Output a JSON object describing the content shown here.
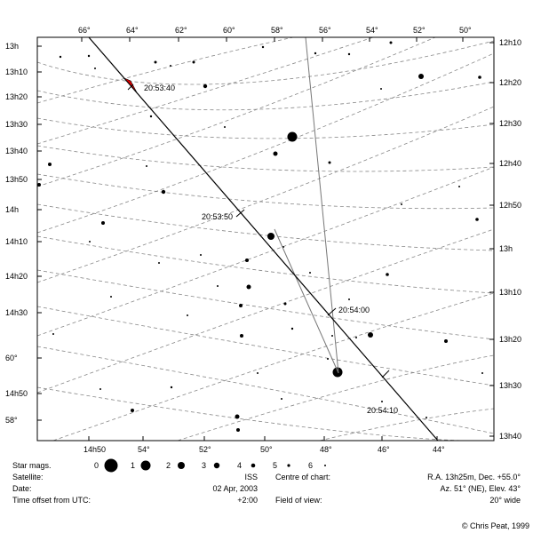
{
  "chart": {
    "top_labels": [
      "66°",
      "64°",
      "62°",
      "60°",
      "58°",
      "56°",
      "54°",
      "52°",
      "50°"
    ],
    "bottom_labels": [
      "14h50",
      "54°",
      "52°",
      "50°",
      "48°",
      "46°",
      "44°"
    ],
    "left_labels": [
      "13h",
      "13h10",
      "13h20",
      "13h30",
      "13h40",
      "13h50",
      "14h",
      "14h10",
      "14h20",
      "14h30",
      "60°",
      "14h50",
      "58°"
    ],
    "right_labels": [
      "12h10",
      "12h20",
      "12h30",
      "12h40",
      "12h50",
      "13h",
      "13h10",
      "13h20",
      "13h30",
      "13h40"
    ],
    "track_labels": [
      "20:53:40",
      "20:53:50",
      "20:54:00",
      "20:54:10"
    ],
    "colors": {
      "track": "#000000",
      "trail": "#777777",
      "arrow": "#dd0000",
      "grid": "#888888"
    }
  },
  "legend": {
    "star_mags_label": "Star mags.",
    "mags": [
      "0",
      "1",
      "2",
      "3",
      "4",
      "5",
      "6"
    ]
  },
  "info": {
    "satellite_label": "Satellite:",
    "satellite_value": "ISS",
    "date_label": "Date:",
    "date_value": "02 Apr, 2003",
    "offset_label": "Time offset from UTC:",
    "offset_value": "+2:00",
    "centre_label": "Centre of chart:",
    "centre_value1": "R.A. 13h25m, Dec. +55.0°",
    "centre_value2": "Az. 51° (NE), Elev. 43°",
    "fov_label": "Field of view:",
    "fov_value": "20° wide"
  },
  "footer": {
    "copyright": "© Chris Peat, 1999"
  }
}
